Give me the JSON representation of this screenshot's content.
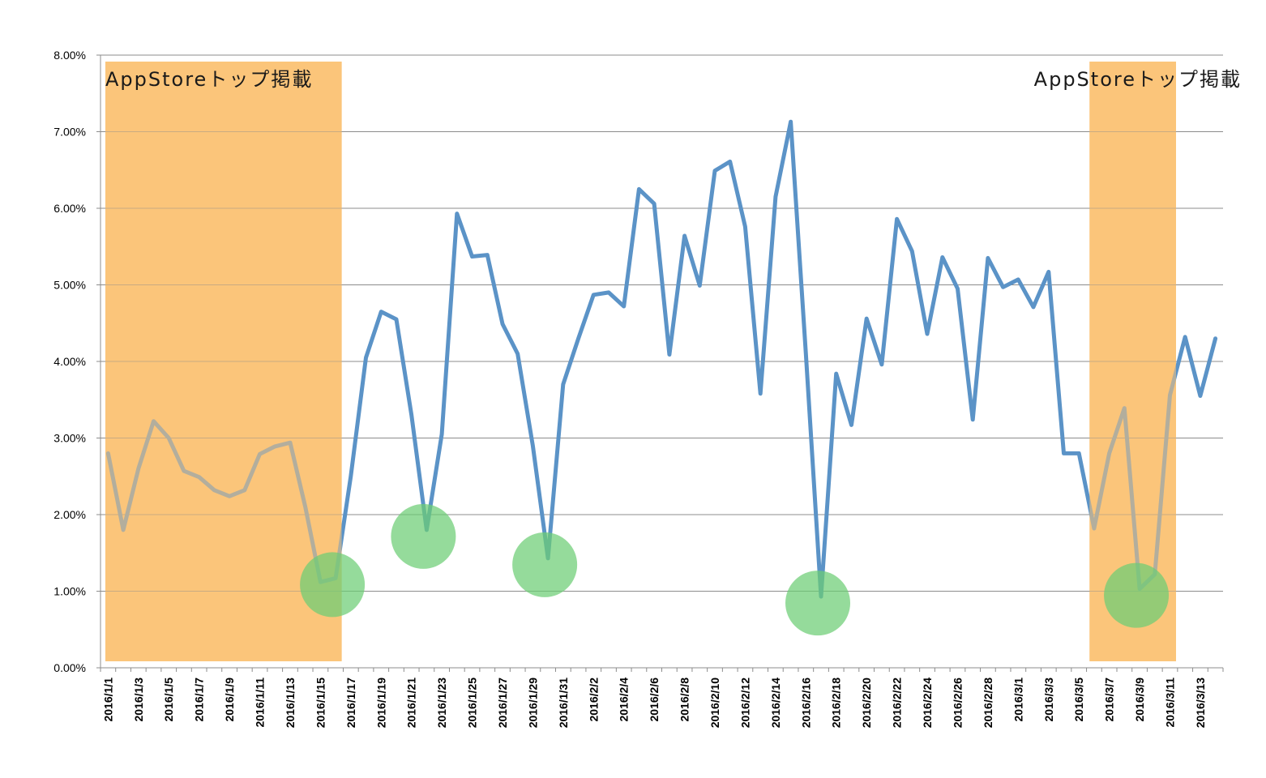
{
  "chart_data": {
    "type": "line",
    "x": [
      "2016/1/1",
      "2016/1/2",
      "2016/1/3",
      "2016/1/4",
      "2016/1/5",
      "2016/1/6",
      "2016/1/7",
      "2016/1/8",
      "2016/1/9",
      "2016/1/10",
      "2016/1/11",
      "2016/1/12",
      "2016/1/13",
      "2016/1/14",
      "2016/1/15",
      "2016/1/16",
      "2016/1/17",
      "2016/1/18",
      "2016/1/19",
      "2016/1/20",
      "2016/1/21",
      "2016/1/22",
      "2016/1/23",
      "2016/1/24",
      "2016/1/25",
      "2016/1/26",
      "2016/1/27",
      "2016/1/28",
      "2016/1/29",
      "2016/1/30",
      "2016/1/31",
      "2016/2/1",
      "2016/2/2",
      "2016/2/3",
      "2016/2/4",
      "2016/2/5",
      "2016/2/6",
      "2016/2/7",
      "2016/2/8",
      "2016/2/9",
      "2016/2/10",
      "2016/2/11",
      "2016/2/12",
      "2016/2/13",
      "2016/2/14",
      "2016/2/15",
      "2016/2/16",
      "2016/2/17",
      "2016/2/18",
      "2016/2/19",
      "2016/2/20",
      "2016/2/21",
      "2016/2/22",
      "2016/2/23",
      "2016/2/24",
      "2016/2/25",
      "2016/2/26",
      "2016/2/27",
      "2016/2/28",
      "2016/2/29",
      "2016/3/1",
      "2016/3/2",
      "2016/3/3",
      "2016/3/4",
      "2016/3/5",
      "2016/3/6",
      "2016/3/7",
      "2016/3/8",
      "2016/3/9",
      "2016/3/10",
      "2016/3/11",
      "2016/3/12",
      "2016/3/13",
      "2016/3/14"
    ],
    "x_tick_labels": [
      "2016/1/1",
      "2016/1/3",
      "2016/1/5",
      "2016/1/7",
      "2016/1/9",
      "2016/1/11",
      "2016/1/13",
      "2016/1/15",
      "2016/1/17",
      "2016/1/19",
      "2016/1/21",
      "2016/1/23",
      "2016/1/25",
      "2016/1/27",
      "2016/1/29",
      "2016/1/31",
      "2016/2/2",
      "2016/2/4",
      "2016/2/6",
      "2016/2/8",
      "2016/2/10",
      "2016/2/12",
      "2016/2/14",
      "2016/2/16",
      "2016/2/18",
      "2016/2/20",
      "2016/2/22",
      "2016/2/24",
      "2016/2/26",
      "2016/2/28",
      "2016/3/1",
      "2016/3/3",
      "2016/3/5",
      "2016/3/7",
      "2016/3/9",
      "2016/3/11",
      "2016/3/13"
    ],
    "series": [
      {
        "values": [
          2.8,
          1.8,
          2.6,
          3.22,
          3.0,
          2.57,
          2.49,
          2.32,
          2.24,
          2.32,
          2.79,
          2.89,
          2.94,
          2.1,
          1.12,
          1.17,
          2.5,
          4.05,
          4.65,
          4.55,
          3.3,
          1.8,
          3.05,
          5.93,
          5.37,
          5.39,
          4.49,
          4.1,
          2.9,
          1.43,
          3.7,
          4.3,
          4.87,
          4.9,
          4.72,
          6.25,
          6.06,
          4.09,
          5.64,
          4.99,
          6.49,
          6.61,
          5.76,
          3.58,
          6.15,
          7.13,
          4.1,
          0.93,
          3.84,
          3.17,
          4.56,
          3.96,
          5.86,
          5.44,
          4.36,
          5.36,
          4.95,
          3.24,
          5.35,
          4.97,
          5.07,
          4.71,
          5.17,
          2.8,
          2.8,
          1.82,
          2.8,
          3.39,
          1.03,
          1.22,
          3.56,
          4.32,
          3.55,
          4.3
        ]
      }
    ],
    "y_ticks": [
      "0.00%",
      "1.00%",
      "2.00%",
      "3.00%",
      "4.00%",
      "5.00%",
      "6.00%",
      "7.00%",
      "8.00%"
    ],
    "ylim": [
      0,
      8
    ],
    "grid": true,
    "highlight_ranges": [
      {
        "from": "2016/1/1",
        "to": "2016/1/16",
        "label": "AppStoreトップ掲載"
      },
      {
        "from": "2016/3/6",
        "to": "2016/3/11",
        "label": "AppStoreトップ掲載"
      }
    ],
    "circled_points": [
      "2016/1/16",
      "2016/1/22",
      "2016/1/30",
      "2016/2/17",
      "2016/3/9"
    ],
    "colors": {
      "line": "#5b93c7",
      "highlight": "#fbc57a",
      "circle": "#6ccd74",
      "grid": "#8c8c8c"
    }
  }
}
